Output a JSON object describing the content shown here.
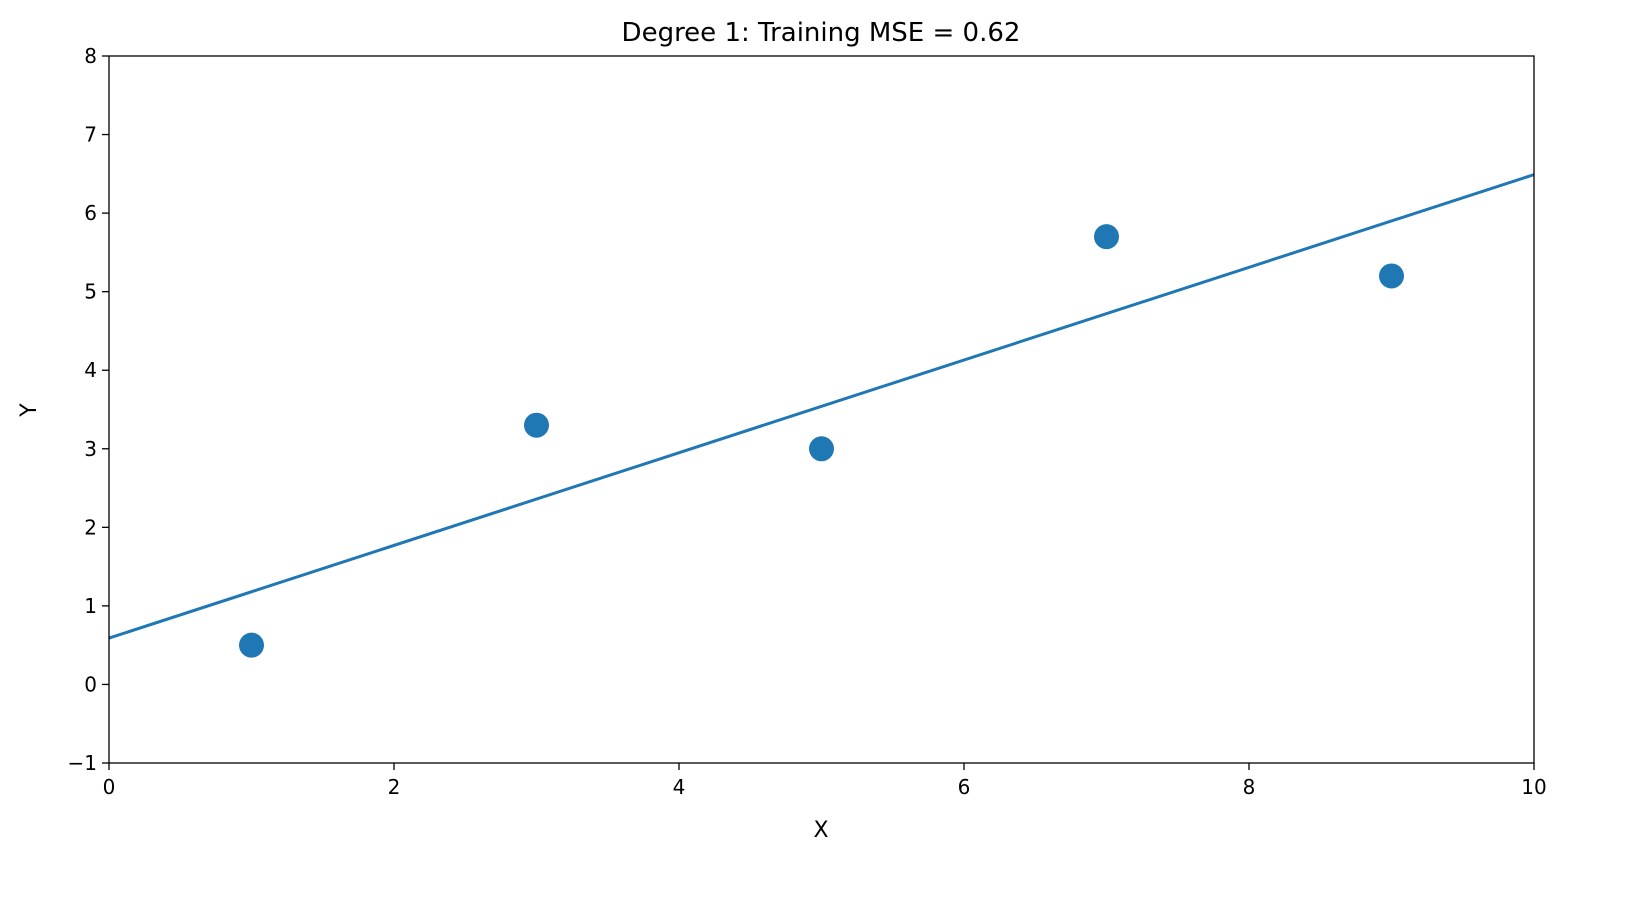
{
  "chart_data": {
    "type": "scatter",
    "title": "Degree 1: Training MSE = 0.62",
    "xlabel": "X",
    "ylabel": "Y",
    "xlim": [
      0,
      10
    ],
    "ylim": [
      -1,
      8
    ],
    "xticks": [
      0,
      2,
      4,
      6,
      8,
      10
    ],
    "yticks": [
      -1,
      0,
      1,
      2,
      3,
      4,
      5,
      6,
      7,
      8
    ],
    "grid": false,
    "points": {
      "x": [
        1,
        3,
        5,
        7,
        9
      ],
      "y": [
        0.5,
        3.3,
        3.0,
        5.7,
        5.2
      ]
    },
    "fit_line": {
      "degree": 1,
      "x": [
        0,
        10
      ],
      "y": [
        0.59,
        6.49
      ]
    },
    "colors": {
      "points": "#1f77b4",
      "line": "#1f77b4"
    }
  }
}
